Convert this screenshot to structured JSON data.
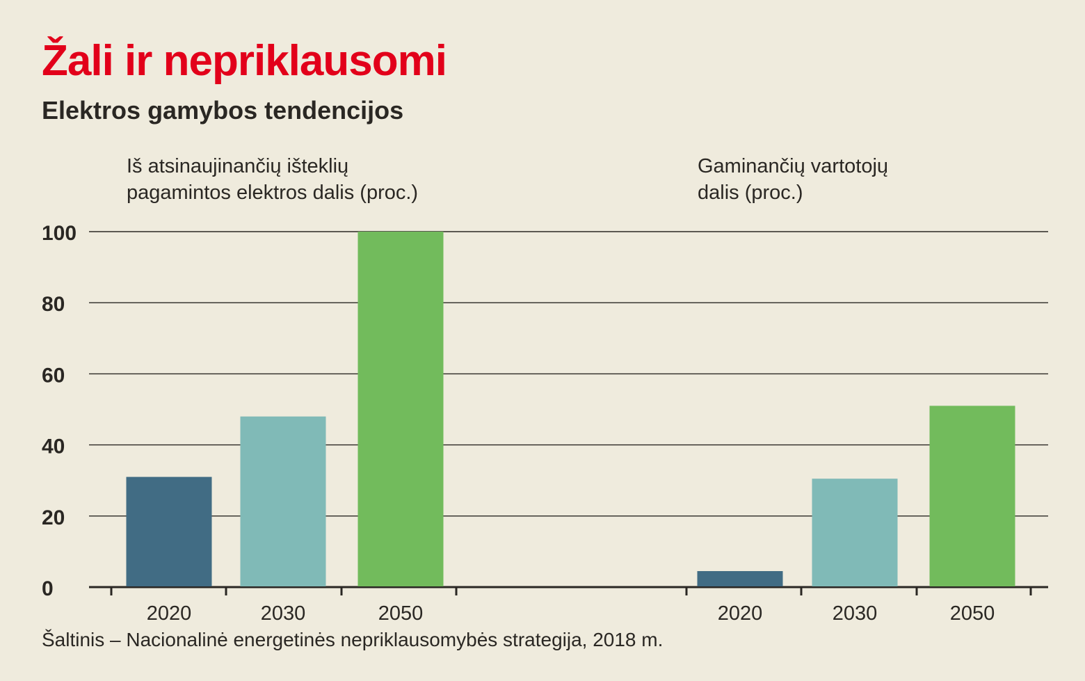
{
  "header": {
    "title": "Žali ir nepriklausomi",
    "subtitle": "Elektros gamybos tendencijos"
  },
  "source": "Šaltinis – Nacionalinė energetinės nepriklausomybės strategija, 2018 m.",
  "colors": {
    "title": "#e2001a",
    "bar_2020": "#416c84",
    "bar_2030": "#80bab7",
    "bar_2050": "#72bb5c",
    "background": "#efebdd"
  },
  "chart_data": [
    {
      "type": "bar",
      "label_lines": [
        "Iš atsinaujinančių išteklių",
        "pagamintos elektros dalis (proc.)"
      ],
      "categories": [
        "2020",
        "2030",
        "2050"
      ],
      "values": [
        31,
        48,
        100
      ],
      "ylim": [
        0,
        100
      ],
      "yticks": [
        "0",
        "20",
        "40",
        "60",
        "80",
        "100"
      ],
      "grid": true
    },
    {
      "type": "bar",
      "label_lines": [
        "Gaminančių vartotojų",
        "dalis (proc.)"
      ],
      "categories": [
        "2020",
        "2030",
        "2050"
      ],
      "values": [
        4.5,
        30.5,
        51
      ],
      "ylim": [
        0,
        100
      ],
      "grid": true
    }
  ]
}
